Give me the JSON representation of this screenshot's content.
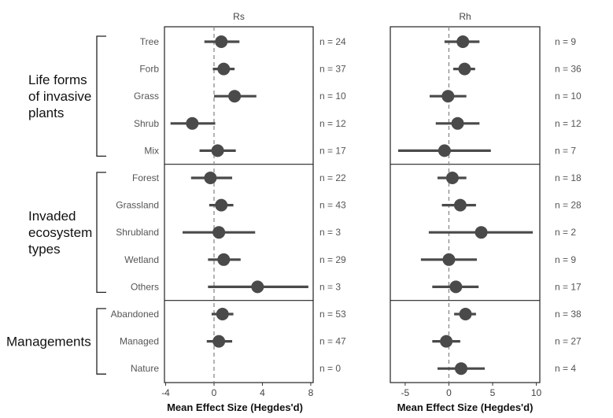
{
  "chart_data": {
    "type": "forest",
    "categories": [
      "Tree",
      "Forb",
      "Grass",
      "Shrub",
      "Mix",
      "Forest",
      "Grassland",
      "Shrubland",
      "Wetland",
      "Others",
      "Abandoned",
      "Managed",
      "Nature"
    ],
    "groups": [
      {
        "label_lines": [
          "Life forms",
          "of invasive",
          "plants"
        ],
        "start": 0,
        "end": 4
      },
      {
        "label_lines": [
          "Invaded",
          "ecosystem",
          "types"
        ],
        "start": 5,
        "end": 9
      },
      {
        "label_lines": [
          "Managements"
        ],
        "start": 10,
        "end": 12
      }
    ],
    "panels": [
      {
        "strip": "Rs",
        "xlabel": "Mean Effect Size (Hegdes'd)",
        "xlim": [
          -4.1,
          8.2
        ],
        "xticks": [
          -4,
          0,
          4,
          8
        ],
        "tick_labels": [
          "-4",
          "0",
          "4",
          "8"
        ],
        "estimates": [
          0.6,
          0.8,
          1.7,
          -1.8,
          0.3,
          -0.3,
          0.6,
          0.4,
          0.8,
          3.6,
          0.7,
          0.4,
          null
        ],
        "lower": [
          -0.8,
          -0.1,
          0.0,
          -3.6,
          -1.2,
          -1.9,
          -0.4,
          -2.6,
          -0.5,
          -0.5,
          -0.2,
          -0.6,
          null
        ],
        "upper": [
          2.1,
          1.7,
          3.5,
          0.1,
          1.8,
          1.5,
          1.6,
          3.4,
          2.2,
          7.8,
          1.6,
          1.5,
          null
        ],
        "n_labels": [
          "n = 24",
          "n = 37",
          "n = 10",
          "n = 12",
          "n = 17",
          "n = 22",
          "n = 43",
          "n = 3",
          "n = 29",
          "n = 3",
          "n = 53",
          "n = 47",
          "n = 0"
        ]
      },
      {
        "strip": "Rh",
        "xlabel": "Mean Effect Size (Hegdes'd)",
        "xlim": [
          -6.7,
          10.4
        ],
        "xticks": [
          -5,
          0,
          5,
          10
        ],
        "tick_labels": [
          "-5",
          "0",
          "5",
          "10"
        ],
        "estimates": [
          1.6,
          1.8,
          -0.1,
          1.0,
          -0.5,
          0.4,
          1.3,
          3.7,
          0.0,
          0.8,
          1.9,
          -0.3,
          1.4
        ],
        "lower": [
          -0.5,
          0.5,
          -2.2,
          -1.5,
          -5.8,
          -1.3,
          -0.8,
          -2.3,
          -3.2,
          -1.9,
          0.6,
          -1.9,
          -1.3
        ],
        "upper": [
          3.5,
          3.0,
          2.0,
          3.5,
          4.8,
          2.0,
          3.1,
          9.6,
          3.2,
          3.4,
          3.1,
          1.3,
          4.1
        ],
        "n_labels": [
          "n = 9",
          "n = 36",
          "n = 10",
          "n = 12",
          "n = 7",
          "n = 18",
          "n = 28",
          "n = 2",
          "n = 9",
          "n = 17",
          "n = 38",
          "n = 27",
          "n = 4"
        ]
      }
    ]
  }
}
